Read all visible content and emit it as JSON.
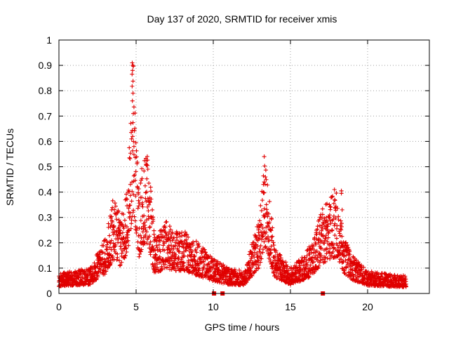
{
  "chart_data": {
    "type": "scatter",
    "title": "Day 137 of 2020, SRMTID for receiver xmis",
    "xlabel": "GPS time / hours",
    "ylabel": "SRMTID / TECUs",
    "xlim": [
      0,
      24
    ],
    "ylim": [
      0,
      1
    ],
    "xticks": [
      0,
      5,
      10,
      15,
      20
    ],
    "xtick_labels": [
      "0",
      "5",
      "10",
      "15",
      "20"
    ],
    "yticks": [
      0,
      0.1,
      0.2,
      0.3,
      0.4,
      0.5,
      0.6,
      0.7,
      0.8,
      0.9,
      1
    ],
    "ytick_labels": [
      "0",
      "0.1",
      "0.2",
      "0.3",
      "0.4",
      "0.5",
      "0.6",
      "0.7",
      "0.8",
      "0.9",
      "1"
    ],
    "grid": true,
    "marker": "+",
    "color": "#e00000",
    "series": [
      {
        "name": "SRMTID",
        "envelope_note": "dense scatter; upper envelope of the cloud (hours, TECU)",
        "envelope": [
          [
            0,
            0.08
          ],
          [
            1,
            0.09
          ],
          [
            2,
            0.1
          ],
          [
            2.5,
            0.16
          ],
          [
            3,
            0.22
          ],
          [
            3.5,
            0.38
          ],
          [
            4,
            0.3
          ],
          [
            4.5,
            0.5
          ],
          [
            4.8,
            0.92
          ],
          [
            5.2,
            0.4
          ],
          [
            5.5,
            0.57
          ],
          [
            5.8,
            0.54
          ],
          [
            6.2,
            0.22
          ],
          [
            7,
            0.29
          ],
          [
            7.5,
            0.24
          ],
          [
            8,
            0.26
          ],
          [
            9,
            0.2
          ],
          [
            10,
            0.14
          ],
          [
            11,
            0.1
          ],
          [
            12,
            0.09
          ],
          [
            13,
            0.3
          ],
          [
            13.3,
            0.54
          ],
          [
            14,
            0.18
          ],
          [
            15,
            0.1
          ],
          [
            16,
            0.16
          ],
          [
            16.5,
            0.22
          ],
          [
            17,
            0.33
          ],
          [
            17.5,
            0.38
          ],
          [
            18,
            0.41
          ],
          [
            18.5,
            0.22
          ],
          [
            19,
            0.15
          ],
          [
            20,
            0.09
          ],
          [
            21,
            0.08
          ],
          [
            22.5,
            0.07
          ]
        ],
        "notable_points": [
          [
            4.75,
            0.91
          ],
          [
            4.78,
            0.9
          ],
          [
            4.77,
            0.88
          ],
          [
            4.74,
            0.865
          ],
          [
            4.8,
            0.79
          ],
          [
            4.76,
            0.76
          ],
          [
            4.82,
            0.71
          ],
          [
            4.7,
            0.61
          ],
          [
            4.86,
            0.58
          ],
          [
            13.3,
            0.54
          ],
          [
            13.3,
            0.44
          ],
          [
            13.35,
            0.31
          ],
          [
            18.3,
            0.405
          ],
          [
            18.3,
            0.395
          ],
          [
            17.85,
            0.41
          ],
          [
            18.35,
            0.33
          ]
        ]
      },
      {
        "name": "zero markers",
        "marker": "square",
        "points": [
          [
            10.05,
            0
          ],
          [
            10.6,
            0
          ],
          [
            17.1,
            0
          ]
        ]
      }
    ]
  }
}
